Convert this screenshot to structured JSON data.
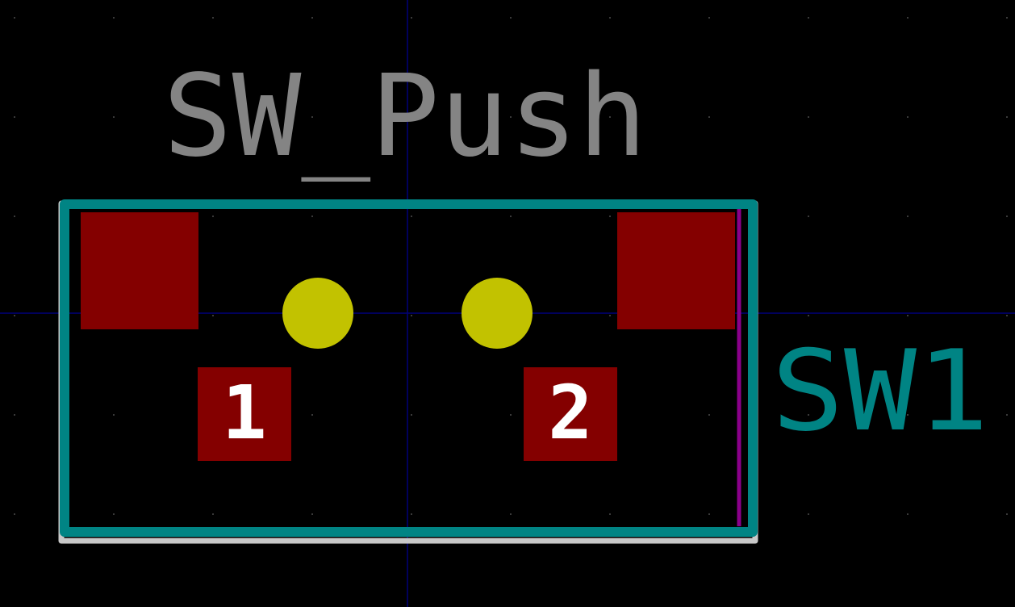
{
  "footprint": {
    "value_label": "SW_Push",
    "reference_label": "SW1",
    "pads": [
      {
        "number": "1"
      },
      {
        "number": "2"
      }
    ]
  },
  "colors": {
    "background": "#000000",
    "grid_dot": "#3a3a3a",
    "axis_line": "#00007a",
    "courtyard": "#c8c8c8",
    "silkscreen": "#008484",
    "fab_edge": "#8a008a",
    "pad_copper": "#840000",
    "pad_label": "#ffffff",
    "drill_hole": "#c2c200",
    "value_text": "#848484",
    "reference_text": "#008484"
  }
}
